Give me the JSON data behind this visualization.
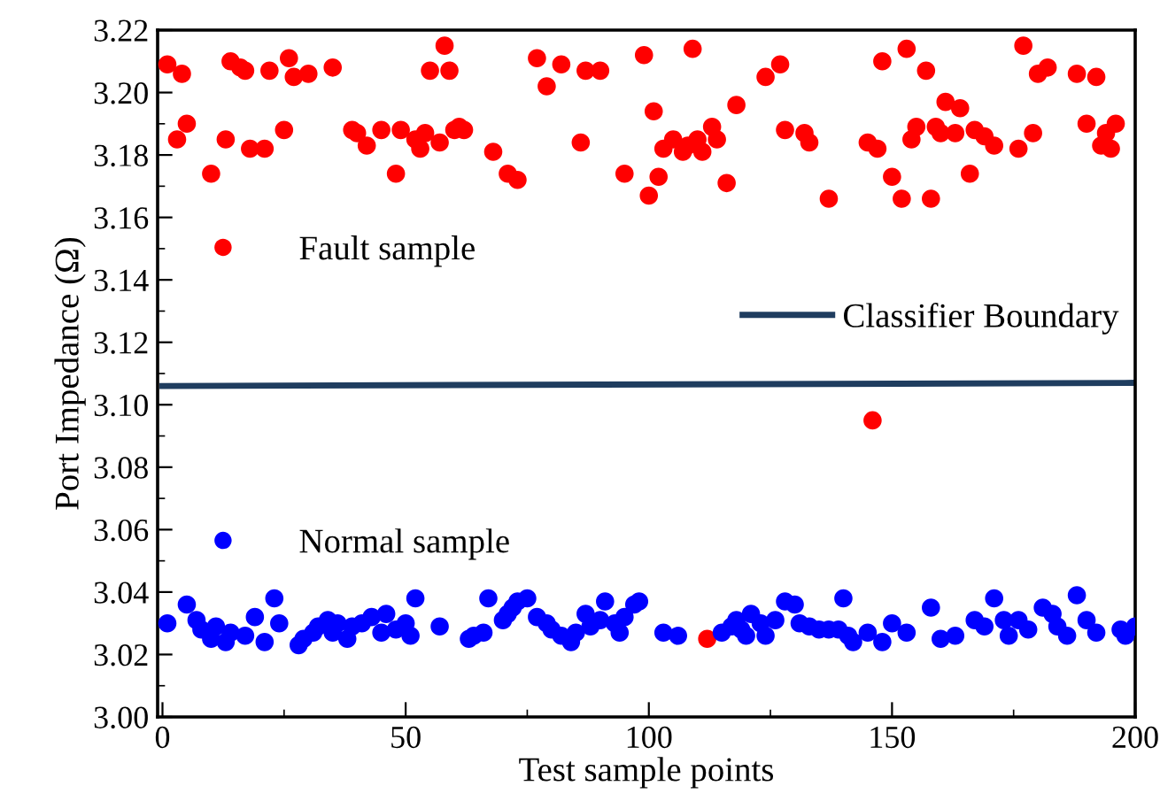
{
  "chart_data": {
    "type": "scatter",
    "xlabel": "Test sample points",
    "ylabel": "Port Impedance (Ω)",
    "xlim": [
      -1,
      200
    ],
    "ylim": [
      3.0,
      3.22
    ],
    "xticks": [
      0,
      {
        "value": 25,
        "label": null
      },
      50,
      {
        "value": 75,
        "label": null
      },
      100,
      {
        "value": 125,
        "label": null
      },
      150,
      {
        "value": 175,
        "label": null
      },
      200
    ],
    "yticks": [
      {
        "value": 3.0,
        "label": "3.00"
      },
      {
        "value": 3.01,
        "label": null
      },
      3.02,
      {
        "value": 3.03,
        "label": null
      },
      3.04,
      {
        "value": 3.05,
        "label": null
      },
      3.06,
      {
        "value": 3.07,
        "label": null
      },
      3.08,
      {
        "value": 3.09,
        "label": null
      },
      {
        "value": 3.1,
        "label": "3.10"
      },
      {
        "value": 3.11,
        "label": null
      },
      3.12,
      {
        "value": 3.13,
        "label": null
      },
      3.14,
      {
        "value": 3.15,
        "label": null
      },
      3.16,
      {
        "value": 3.17,
        "label": null
      },
      3.18,
      {
        "value": 3.19,
        "label": null
      },
      {
        "value": 3.2,
        "label": "3.20"
      },
      {
        "value": 3.21,
        "label": null
      },
      3.22
    ],
    "marker": "circle",
    "grid": false,
    "legend": "left",
    "series": [
      {
        "name": "Fault sample",
        "color": "#ff0000",
        "x": [
          1,
          4,
          3,
          5,
          10,
          13,
          14,
          16,
          17,
          18,
          21,
          22,
          25,
          26,
          27,
          30,
          35,
          39,
          40,
          42,
          45,
          48,
          49,
          52,
          53,
          54,
          55,
          57,
          58,
          59,
          60,
          61,
          62,
          68,
          71,
          73,
          77,
          79,
          82,
          86,
          87,
          90,
          95,
          99,
          100,
          101,
          102,
          103,
          105,
          107,
          108,
          109,
          110,
          111,
          113,
          114,
          116,
          118,
          124,
          127,
          128,
          132,
          133,
          137,
          145,
          147,
          148,
          150,
          152,
          153,
          154,
          155,
          157,
          158,
          159,
          160,
          161,
          163,
          164,
          166,
          167,
          169,
          171,
          176,
          177,
          179,
          180,
          182,
          188,
          190,
          192,
          193,
          194,
          195,
          196,
          146,
          112
        ],
        "values": [
          3.209,
          3.206,
          3.185,
          3.19,
          3.174,
          3.185,
          3.21,
          3.208,
          3.207,
          3.182,
          3.182,
          3.207,
          3.188,
          3.211,
          3.205,
          3.206,
          3.208,
          3.188,
          3.187,
          3.183,
          3.188,
          3.174,
          3.188,
          3.185,
          3.182,
          3.187,
          3.207,
          3.184,
          3.215,
          3.207,
          3.188,
          3.189,
          3.188,
          3.181,
          3.174,
          3.172,
          3.211,
          3.202,
          3.209,
          3.184,
          3.207,
          3.207,
          3.174,
          3.212,
          3.167,
          3.194,
          3.173,
          3.182,
          3.185,
          3.181,
          3.183,
          3.214,
          3.185,
          3.181,
          3.189,
          3.185,
          3.171,
          3.196,
          3.205,
          3.209,
          3.188,
          3.187,
          3.184,
          3.166,
          3.184,
          3.182,
          3.21,
          3.173,
          3.166,
          3.214,
          3.185,
          3.189,
          3.207,
          3.166,
          3.189,
          3.187,
          3.197,
          3.187,
          3.195,
          3.174,
          3.188,
          3.186,
          3.183,
          3.182,
          3.215,
          3.187,
          3.206,
          3.208,
          3.206,
          3.19,
          3.205,
          3.183,
          3.187,
          3.182,
          3.19,
          3.095,
          3.025
        ]
      },
      {
        "name": "Normal sample",
        "color": "#0000ff",
        "x": [
          1,
          5,
          7,
          8,
          10,
          11,
          13,
          14,
          17,
          19,
          21,
          23,
          24,
          28,
          29,
          31,
          32,
          34,
          35,
          36,
          38,
          39,
          41,
          43,
          45,
          46,
          48,
          50,
          51,
          52,
          57,
          63,
          64,
          66,
          67,
          70,
          71,
          72,
          73,
          75,
          77,
          79,
          80,
          82,
          84,
          85,
          87,
          88,
          90,
          91,
          93,
          94,
          95,
          97,
          98,
          103,
          106,
          115,
          117,
          118,
          119,
          120,
          121,
          123,
          124,
          126,
          128,
          130,
          131,
          133,
          135,
          137,
          139,
          140,
          141,
          142,
          145,
          148,
          150,
          153,
          158,
          160,
          163,
          167,
          169,
          171,
          173,
          174,
          176,
          178,
          181,
          183,
          184,
          186,
          188,
          190,
          192,
          197,
          198,
          200
        ],
        "values": [
          3.03,
          3.036,
          3.031,
          3.028,
          3.025,
          3.029,
          3.024,
          3.027,
          3.026,
          3.032,
          3.024,
          3.038,
          3.03,
          3.023,
          3.025,
          3.027,
          3.029,
          3.031,
          3.027,
          3.03,
          3.025,
          3.029,
          3.03,
          3.032,
          3.027,
          3.033,
          3.028,
          3.03,
          3.026,
          3.038,
          3.029,
          3.025,
          3.026,
          3.027,
          3.038,
          3.031,
          3.033,
          3.035,
          3.037,
          3.038,
          3.032,
          3.03,
          3.028,
          3.026,
          3.024,
          3.027,
          3.033,
          3.029,
          3.031,
          3.037,
          3.03,
          3.027,
          3.032,
          3.036,
          3.037,
          3.027,
          3.026,
          3.027,
          3.029,
          3.031,
          3.028,
          3.026,
          3.033,
          3.03,
          3.026,
          3.031,
          3.037,
          3.036,
          3.03,
          3.029,
          3.028,
          3.028,
          3.028,
          3.038,
          3.026,
          3.024,
          3.027,
          3.024,
          3.03,
          3.027,
          3.035,
          3.025,
          3.026,
          3.031,
          3.029,
          3.038,
          3.031,
          3.026,
          3.031,
          3.028,
          3.035,
          3.033,
          3.029,
          3.026,
          3.039,
          3.031,
          3.027,
          3.028,
          3.026,
          3.029
        ]
      },
      {
        "name": "Classifier Boundary",
        "type": "line",
        "color": "#1f3d5f",
        "marker": "none",
        "x": [
          0,
          200
        ],
        "values": [
          3.106,
          3.107
        ]
      }
    ]
  }
}
